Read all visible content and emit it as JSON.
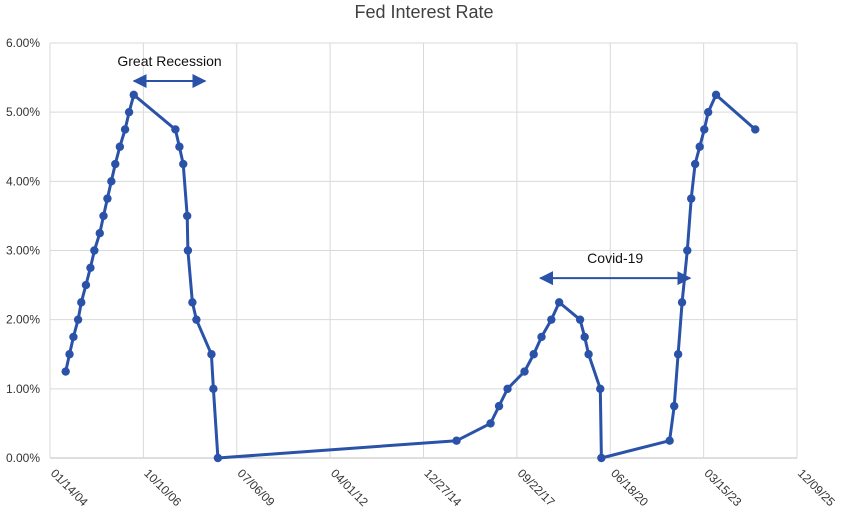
{
  "chart_data": {
    "type": "line",
    "title": "Fed Interest Rate",
    "xlabel": "",
    "ylabel": "",
    "x_ticks": [
      "01/14/04",
      "10/10/06",
      "07/06/09",
      "04/01/12",
      "12/27/14",
      "09/22/17",
      "06/18/20",
      "03/15/23",
      "12/09/25"
    ],
    "y_ticks": [
      "0.00%",
      "1.00%",
      "2.00%",
      "3.00%",
      "4.00%",
      "5.00%",
      "6.00%"
    ],
    "xlim": [
      "2004-01-14",
      "2025-12-09"
    ],
    "ylim": [
      0,
      6
    ],
    "grid": true,
    "legend": "none",
    "colors": {
      "series": "#2a52a8",
      "grid": "#d9d9d9",
      "axis": "#bfbfbf",
      "annotation": "#2a52a8"
    },
    "series": [
      {
        "points": [
          [
            "2004-06-30",
            1.25
          ],
          [
            "2004-08-10",
            1.5
          ],
          [
            "2004-09-21",
            1.75
          ],
          [
            "2004-11-10",
            2.0
          ],
          [
            "2004-12-14",
            2.25
          ],
          [
            "2005-02-02",
            2.5
          ],
          [
            "2005-03-22",
            2.75
          ],
          [
            "2005-05-03",
            3.0
          ],
          [
            "2005-06-30",
            3.25
          ],
          [
            "2005-08-09",
            3.5
          ],
          [
            "2005-09-20",
            3.75
          ],
          [
            "2005-11-01",
            4.0
          ],
          [
            "2005-12-13",
            4.25
          ],
          [
            "2006-01-31",
            4.5
          ],
          [
            "2006-03-28",
            4.75
          ],
          [
            "2006-05-10",
            5.0
          ],
          [
            "2006-06-29",
            5.25
          ],
          [
            "2007-09-18",
            4.75
          ],
          [
            "2007-10-31",
            4.5
          ],
          [
            "2007-12-11",
            4.25
          ],
          [
            "2008-01-22",
            3.5
          ],
          [
            "2008-01-30",
            3.0
          ],
          [
            "2008-03-18",
            2.25
          ],
          [
            "2008-04-30",
            2.0
          ],
          [
            "2008-10-08",
            1.5
          ],
          [
            "2008-10-29",
            1.0
          ],
          [
            "2008-12-16",
            0.0
          ],
          [
            "2015-12-16",
            0.25
          ],
          [
            "2016-12-14",
            0.5
          ],
          [
            "2017-03-15",
            0.75
          ],
          [
            "2017-06-14",
            1.0
          ],
          [
            "2017-12-13",
            1.25
          ],
          [
            "2018-03-21",
            1.5
          ],
          [
            "2018-06-13",
            1.75
          ],
          [
            "2018-09-26",
            2.0
          ],
          [
            "2018-12-19",
            2.25
          ],
          [
            "2019-07-31",
            2.0
          ],
          [
            "2019-09-18",
            1.75
          ],
          [
            "2019-10-30",
            1.5
          ],
          [
            "2020-03-03",
            1.0
          ],
          [
            "2020-03-15",
            0.0
          ],
          [
            "2022-03-16",
            0.25
          ],
          [
            "2022-05-04",
            0.75
          ],
          [
            "2022-06-15",
            1.5
          ],
          [
            "2022-07-27",
            2.25
          ],
          [
            "2022-09-21",
            3.0
          ],
          [
            "2022-11-02",
            3.75
          ],
          [
            "2022-12-14",
            4.25
          ],
          [
            "2023-02-01",
            4.5
          ],
          [
            "2023-03-22",
            4.75
          ],
          [
            "2023-05-03",
            5.0
          ],
          [
            "2023-07-26",
            5.25
          ],
          [
            "2024-09-18",
            4.75
          ]
        ]
      }
    ],
    "annotations": [
      {
        "label": "Great Recession",
        "x_start": "2006-07-01",
        "x_end": "2008-08-01",
        "y": 5.45
      },
      {
        "label": "Covid-19",
        "x_start": "2018-06-01",
        "x_end": "2022-10-20",
        "y": 2.6
      }
    ]
  }
}
